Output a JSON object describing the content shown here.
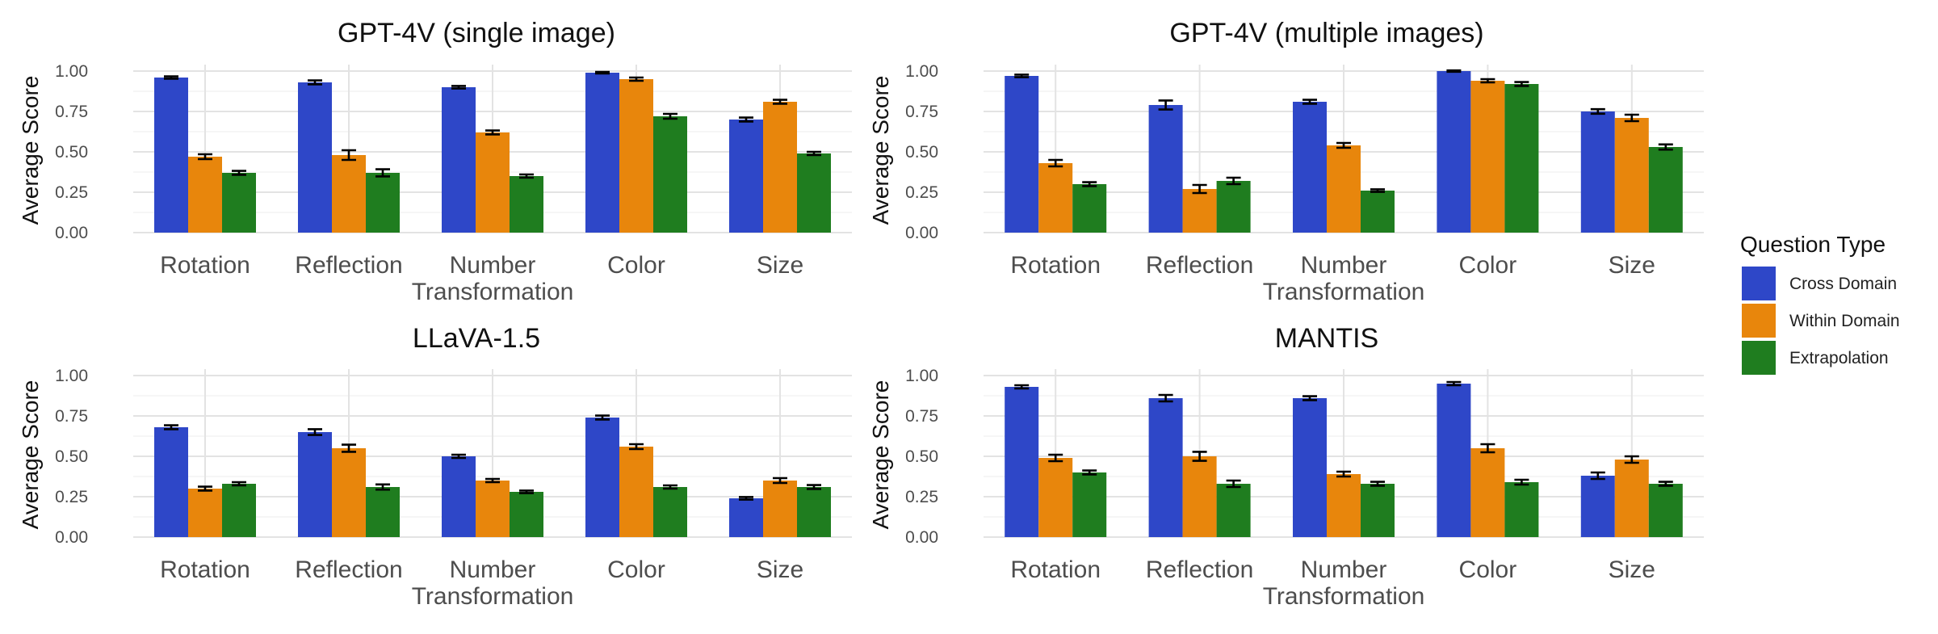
{
  "chart_data": {
    "type": "bar",
    "ylabel": "Average Score",
    "ylim": [
      0,
      1
    ],
    "y_ticks": [
      "0.00",
      "0.25",
      "0.50",
      "0.75",
      "1.00"
    ],
    "categories": [
      "Rotation",
      "Reflection",
      "Number\nTransformation",
      "Color",
      "Size"
    ],
    "legend": {
      "title": "Question Type",
      "placement": "right",
      "items": [
        {
          "name": "Cross Domain",
          "color": "#2E47C8"
        },
        {
          "name": "Within Domain",
          "color": "#E8860C"
        },
        {
          "name": "Extrapolation",
          "color": "#1F7D1F"
        }
      ]
    },
    "panels": [
      {
        "title": "GPT-4V (single image)",
        "series": [
          {
            "name": "Cross Domain",
            "values": [
              0.96,
              0.93,
              0.9,
              0.99,
              0.7
            ],
            "errors": [
              0.007,
              0.012,
              0.008,
              0.005,
              0.012
            ]
          },
          {
            "name": "Within Domain",
            "values": [
              0.47,
              0.48,
              0.62,
              0.95,
              0.81
            ],
            "errors": [
              0.015,
              0.03,
              0.012,
              0.01,
              0.012
            ]
          },
          {
            "name": "Extrapolation",
            "values": [
              0.37,
              0.37,
              0.35,
              0.72,
              0.49
            ],
            "errors": [
              0.012,
              0.022,
              0.01,
              0.015,
              0.01
            ]
          }
        ]
      },
      {
        "title": "GPT-4V (multiple images)",
        "series": [
          {
            "name": "Cross Domain",
            "values": [
              0.97,
              0.79,
              0.81,
              1.0,
              0.75
            ],
            "errors": [
              0.008,
              0.028,
              0.012,
              0.004,
              0.014
            ]
          },
          {
            "name": "Within Domain",
            "values": [
              0.43,
              0.27,
              0.54,
              0.94,
              0.71
            ],
            "errors": [
              0.02,
              0.025,
              0.015,
              0.01,
              0.02
            ]
          },
          {
            "name": "Extrapolation",
            "values": [
              0.3,
              0.32,
              0.26,
              0.92,
              0.53
            ],
            "errors": [
              0.012,
              0.02,
              0.008,
              0.012,
              0.016
            ]
          }
        ]
      },
      {
        "title": "LLaVA-1.5",
        "series": [
          {
            "name": "Cross Domain",
            "values": [
              0.68,
              0.65,
              0.5,
              0.74,
              0.24
            ],
            "errors": [
              0.012,
              0.018,
              0.01,
              0.012,
              0.008
            ]
          },
          {
            "name": "Within Domain",
            "values": [
              0.3,
              0.55,
              0.35,
              0.56,
              0.35
            ],
            "errors": [
              0.012,
              0.022,
              0.01,
              0.015,
              0.015
            ]
          },
          {
            "name": "Extrapolation",
            "values": [
              0.33,
              0.31,
              0.28,
              0.31,
              0.31
            ],
            "errors": [
              0.01,
              0.016,
              0.008,
              0.01,
              0.012
            ]
          }
        ]
      },
      {
        "title": "MANTIS",
        "series": [
          {
            "name": "Cross Domain",
            "values": [
              0.93,
              0.86,
              0.86,
              0.95,
              0.38
            ],
            "errors": [
              0.01,
              0.02,
              0.012,
              0.01,
              0.02
            ]
          },
          {
            "name": "Within Domain",
            "values": [
              0.49,
              0.5,
              0.39,
              0.55,
              0.48
            ],
            "errors": [
              0.02,
              0.028,
              0.015,
              0.025,
              0.02
            ]
          },
          {
            "name": "Extrapolation",
            "values": [
              0.4,
              0.33,
              0.33,
              0.34,
              0.33
            ],
            "errors": [
              0.012,
              0.02,
              0.012,
              0.015,
              0.012
            ]
          }
        ]
      }
    ]
  }
}
